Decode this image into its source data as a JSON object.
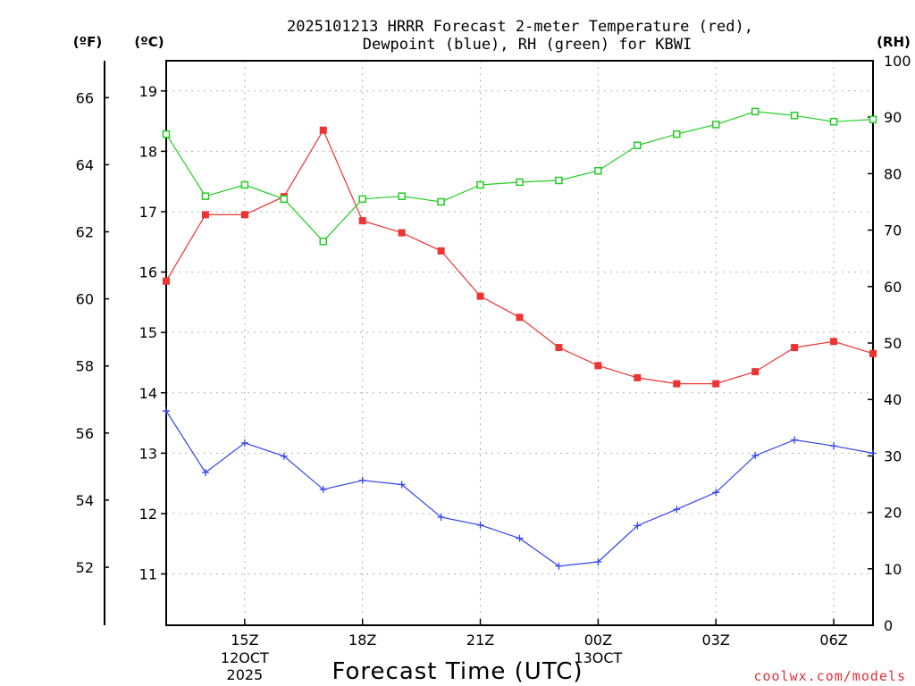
{
  "chart_data": {
    "type": "line",
    "title_line1": "2025101213 HRRR Forecast 2-meter Temperature (red),",
    "title_line2": "Dewpoint (blue), RH (green) for KBWI",
    "xlabel": "Forecast Time (UTC)",
    "credit": "coolwx.com/models",
    "units": {
      "fahrenheit": "(ºF)",
      "celsius": "(ºC)",
      "rh": "(RH)"
    },
    "x_hours": [
      13,
      14,
      15,
      16,
      17,
      18,
      19,
      20,
      21,
      22,
      23,
      24,
      25,
      26,
      27,
      28,
      29,
      30,
      31
    ],
    "x_ticks": [
      {
        "hour": 15,
        "label": "15Z",
        "date1": "12OCT",
        "date2": "2025"
      },
      {
        "hour": 18,
        "label": "18Z"
      },
      {
        "hour": 21,
        "label": "21Z"
      },
      {
        "hour": 24,
        "label": "00Z",
        "date1": "13OCT"
      },
      {
        "hour": 27,
        "label": "03Z"
      },
      {
        "hour": 30,
        "label": "06Z"
      }
    ],
    "celsius_ticks": [
      "11",
      "12",
      "13",
      "14",
      "15",
      "16",
      "17",
      "18",
      "19"
    ],
    "fahrenheit_ticks": [
      "52",
      "54",
      "56",
      "58",
      "60",
      "62",
      "64",
      "66"
    ],
    "rh_ticks": [
      "0",
      "10",
      "20",
      "30",
      "40",
      "50",
      "60",
      "70",
      "80",
      "90",
      "100"
    ],
    "ylim_celsius": [
      10.15,
      19.5
    ],
    "ylim_rh": [
      0,
      100
    ],
    "series": [
      {
        "name": "Temperature (°C)",
        "color": "#ee3333",
        "marker": "filled-square",
        "values": [
          15.85,
          16.95,
          16.95,
          17.25,
          18.35,
          16.85,
          16.65,
          16.35,
          15.6,
          15.25,
          14.75,
          14.45,
          14.25,
          14.15,
          14.15,
          14.35,
          14.75,
          14.85,
          14.65
        ]
      },
      {
        "name": "Dewpoint (°C)",
        "color": "#3344ee",
        "marker": "plus",
        "values": [
          13.7,
          12.68,
          13.17,
          12.95,
          12.4,
          12.55,
          12.48,
          11.94,
          11.81,
          11.59,
          11.13,
          11.2,
          11.8,
          12.07,
          12.35,
          12.96,
          13.22,
          13.12,
          13.0
        ]
      },
      {
        "name": "RH (%)",
        "color": "#22cc22",
        "marker": "open-square",
        "values": [
          87,
          76,
          78,
          75.5,
          68,
          75.5,
          76,
          75,
          78,
          78.5,
          78.8,
          80.5,
          85,
          87,
          88.7,
          91,
          90.3,
          89.2,
          89.6
        ]
      }
    ]
  }
}
